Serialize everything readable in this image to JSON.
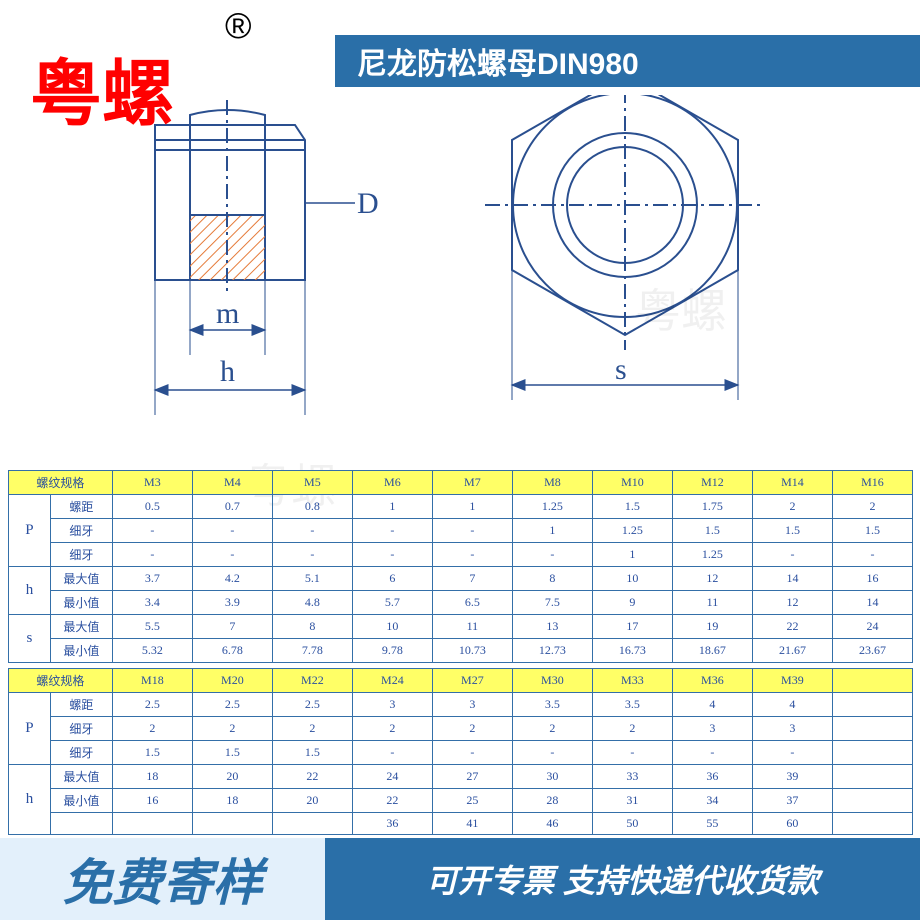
{
  "brand_text": "粤螺",
  "registered_mark": "®",
  "title": "尼龙防松螺母DIN980",
  "diagram_labels": {
    "D": "D",
    "m": "m",
    "h": "h",
    "s": "s"
  },
  "watermark_text": "粤螺",
  "colors": {
    "brand": "#ff0000",
    "title_bg": "#2a6fa8",
    "line": "#2a4f8f",
    "hatch": "#e57b3a",
    "header_bg": "#ffff66",
    "border": "#346fa8",
    "footer_left_bg": "#e3f0fb",
    "footer_right_bg": "#2a6fa8"
  },
  "table1": {
    "header_label": "螺纹规格",
    "sizes": [
      "M3",
      "M4",
      "M5",
      "M6",
      "M7",
      "M8",
      "M10",
      "M12",
      "M14",
      "M16"
    ],
    "groups": [
      {
        "sym": "P",
        "rows": [
          {
            "label": "螺距",
            "vals": [
              "0.5",
              "0.7",
              "0.8",
              "1",
              "1",
              "1.25",
              "1.5",
              "1.75",
              "2",
              "2"
            ]
          },
          {
            "label": "细牙",
            "vals": [
              "-",
              "-",
              "-",
              "-",
              "-",
              "1",
              "1.25",
              "1.5",
              "1.5",
              "1.5"
            ]
          },
          {
            "label": "细牙",
            "vals": [
              "-",
              "-",
              "-",
              "-",
              "-",
              "-",
              "1",
              "1.25",
              "-",
              "-"
            ]
          }
        ]
      },
      {
        "sym": "h",
        "rows": [
          {
            "label": "最大值",
            "vals": [
              "3.7",
              "4.2",
              "5.1",
              "6",
              "7",
              "8",
              "10",
              "12",
              "14",
              "16"
            ]
          },
          {
            "label": "最小值",
            "vals": [
              "3.4",
              "3.9",
              "4.8",
              "5.7",
              "6.5",
              "7.5",
              "9",
              "11",
              "12",
              "14"
            ]
          }
        ]
      },
      {
        "sym": "s",
        "rows": [
          {
            "label": "最大值",
            "vals": [
              "5.5",
              "7",
              "8",
              "10",
              "11",
              "13",
              "17",
              "19",
              "22",
              "24"
            ]
          },
          {
            "label": "最小值",
            "vals": [
              "5.32",
              "6.78",
              "7.78",
              "9.78",
              "10.73",
              "12.73",
              "16.73",
              "18.67",
              "21.67",
              "23.67"
            ]
          }
        ]
      }
    ]
  },
  "table2": {
    "header_label": "螺纹规格",
    "sizes": [
      "M18",
      "M20",
      "M22",
      "M24",
      "M27",
      "M30",
      "M33",
      "M36",
      "M39"
    ],
    "groups": [
      {
        "sym": "P",
        "rows": [
          {
            "label": "螺距",
            "vals": [
              "2.5",
              "2.5",
              "2.5",
              "3",
              "3",
              "3.5",
              "3.5",
              "4",
              "4"
            ]
          },
          {
            "label": "细牙",
            "vals": [
              "2",
              "2",
              "2",
              "2",
              "2",
              "2",
              "2",
              "3",
              "3"
            ]
          },
          {
            "label": "细牙",
            "vals": [
              "1.5",
              "1.5",
              "1.5",
              "-",
              "-",
              "-",
              "-",
              "-",
              "-"
            ]
          }
        ]
      },
      {
        "sym": "h",
        "rows": [
          {
            "label": "最大值",
            "vals": [
              "18",
              "20",
              "22",
              "24",
              "27",
              "30",
              "33",
              "36",
              "39"
            ]
          },
          {
            "label": "最小值",
            "vals": [
              "16",
              "18",
              "20",
              "22",
              "25",
              "28",
              "31",
              "34",
              "37"
            ]
          },
          {
            "label": "",
            "vals": [
              "",
              "",
              "",
              "36",
              "41",
              "46",
              "50",
              "55",
              "60"
            ]
          }
        ]
      }
    ]
  },
  "footer_left": "免费寄样",
  "footer_right": "可开专票 支持快递代收货款"
}
